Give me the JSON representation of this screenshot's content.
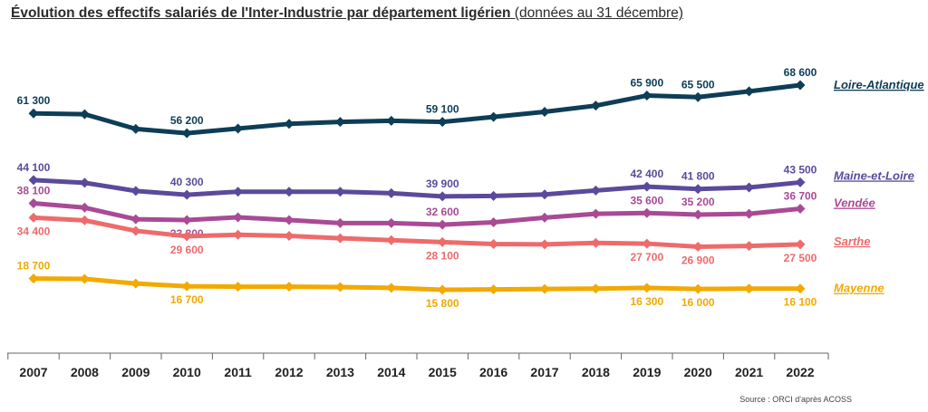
{
  "title": {
    "main": "Évolution des effectifs salariés de l'Inter-Industrie par département ligérien",
    "sub": " (données au 31 décembre)"
  },
  "source": "Source : ORCI d'après ACOSS",
  "chart_data": {
    "type": "line",
    "title": "Évolution des effectifs salariés de l'Inter-Industrie par département ligérien (données au 31 décembre)",
    "xlabel": "",
    "ylabel": "",
    "grid": false,
    "legend": "right, at line ends",
    "categories": [
      "2007",
      "2008",
      "2009",
      "2010",
      "2011",
      "2012",
      "2013",
      "2014",
      "2015",
      "2016",
      "2017",
      "2018",
      "2019",
      "2020",
      "2021",
      "2022"
    ],
    "series": [
      {
        "name": "Loire-Atlantique",
        "color": "#0d3d57",
        "values": [
          61300,
          61100,
          57300,
          56200,
          57400,
          58600,
          59100,
          59400,
          59100,
          60400,
          61700,
          63300,
          65900,
          65500,
          67000,
          68600
        ],
        "labels": [
          {
            "index": 0,
            "text": "61 300",
            "pos": "above"
          },
          {
            "index": 3,
            "text": "56 200",
            "pos": "above"
          },
          {
            "index": 8,
            "text": "59 100",
            "pos": "above"
          },
          {
            "index": 12,
            "text": "65 900",
            "pos": "above"
          },
          {
            "index": 13,
            "text": "65 500",
            "pos": "above"
          },
          {
            "index": 15,
            "text": "68 600",
            "pos": "above"
          }
        ]
      },
      {
        "name": "Maine-et-Loire",
        "color": "#5b4a9b",
        "values": [
          44100,
          43400,
          41300,
          40300,
          41100,
          41100,
          41100,
          40700,
          39900,
          40000,
          40400,
          41400,
          42400,
          41800,
          42200,
          43500
        ],
        "labels": [
          {
            "index": 0,
            "text": "44 100",
            "pos": "above"
          },
          {
            "index": 3,
            "text": "40 300",
            "pos": "above"
          },
          {
            "index": 8,
            "text": "39 900",
            "pos": "above"
          },
          {
            "index": 12,
            "text": "42 400",
            "pos": "above"
          },
          {
            "index": 13,
            "text": "41 800",
            "pos": "above"
          },
          {
            "index": 15,
            "text": "43 500",
            "pos": "above"
          }
        ]
      },
      {
        "name": "Vendée",
        "color": "#a94a96",
        "values": [
          38100,
          37000,
          34000,
          33800,
          34500,
          33800,
          33000,
          33000,
          32600,
          33200,
          34400,
          35400,
          35600,
          35200,
          35400,
          36700
        ],
        "labels": [
          {
            "index": 0,
            "text": "38 100",
            "pos": "above"
          },
          {
            "index": 3,
            "text": "33 800",
            "pos": "below"
          },
          {
            "index": 8,
            "text": "32 600",
            "pos": "above"
          },
          {
            "index": 12,
            "text": "35 600",
            "pos": "above"
          },
          {
            "index": 13,
            "text": "35 200",
            "pos": "above"
          },
          {
            "index": 15,
            "text": "36 700",
            "pos": "above"
          }
        ]
      },
      {
        "name": "Sarthe",
        "color": "#ee6b6b",
        "values": [
          34400,
          33700,
          31000,
          29600,
          30000,
          29700,
          29100,
          28600,
          28100,
          27600,
          27500,
          27900,
          27700,
          26900,
          27100,
          27500
        ],
        "labels": [
          {
            "index": 0,
            "text": "34 400",
            "pos": "below"
          },
          {
            "index": 3,
            "text": "29 600",
            "pos": "below"
          },
          {
            "index": 8,
            "text": "28 100",
            "pos": "below"
          },
          {
            "index": 12,
            "text": "27 700",
            "pos": "below"
          },
          {
            "index": 13,
            "text": "26 900",
            "pos": "below"
          },
          {
            "index": 15,
            "text": "27 500",
            "pos": "below"
          }
        ]
      },
      {
        "name": "Mayenne",
        "color": "#f2a900",
        "values": [
          18700,
          18600,
          17400,
          16700,
          16600,
          16600,
          16500,
          16300,
          15800,
          15900,
          16000,
          16100,
          16300,
          16000,
          16100,
          16100
        ],
        "labels": [
          {
            "index": 0,
            "text": "18 700",
            "pos": "above"
          },
          {
            "index": 3,
            "text": "16 700",
            "pos": "below"
          },
          {
            "index": 8,
            "text": "15 800",
            "pos": "below"
          },
          {
            "index": 12,
            "text": "16 300",
            "pos": "below"
          },
          {
            "index": 13,
            "text": "16 000",
            "pos": "below"
          },
          {
            "index": 15,
            "text": "16 100",
            "pos": "below"
          }
        ]
      }
    ]
  }
}
